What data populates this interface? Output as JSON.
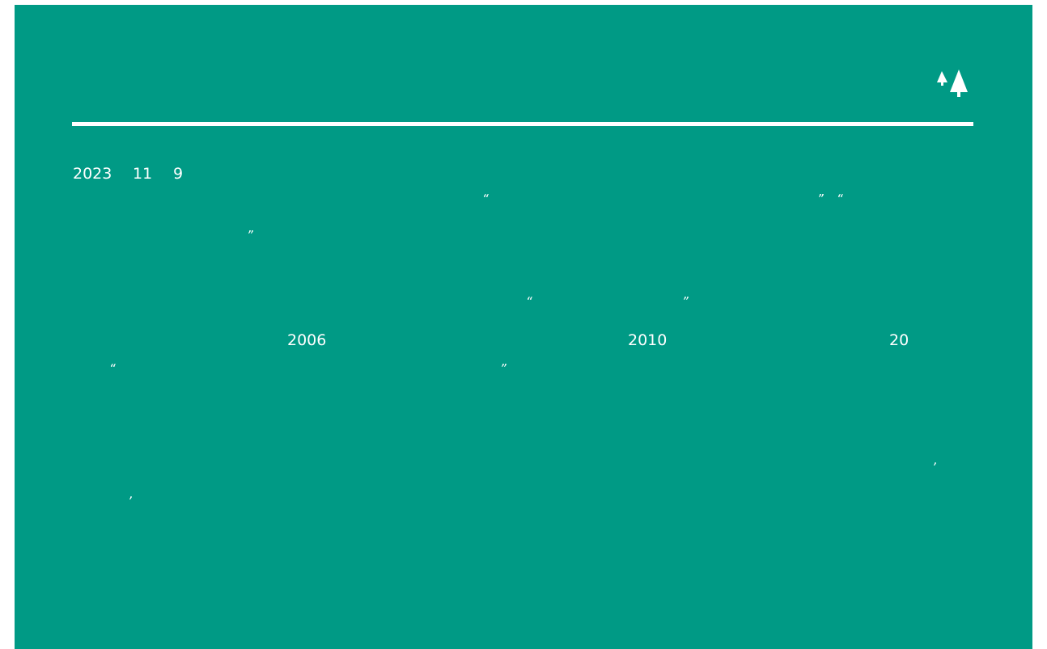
{
  "date": {
    "year": "2023",
    "month": "11",
    "day": "9"
  },
  "body": [
    "“",
    "”",
    "“",
    "”",
    "“",
    "”",
    "2006",
    "2010",
    "20",
    "“",
    "”",
    ",",
    ","
  ]
}
